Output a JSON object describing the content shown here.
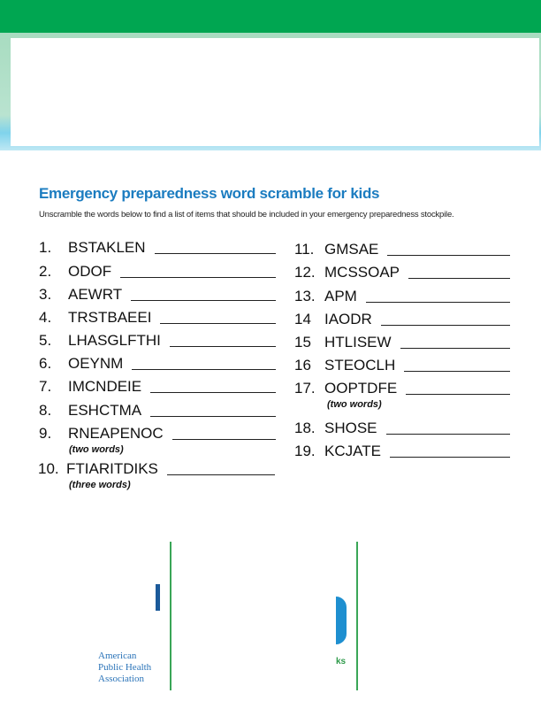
{
  "header": {
    "title": "Emergency preparedness word scramble for kids",
    "instructions": "Unscramble the words below to find a list of items that should be included in your emergency preparedness stockpile."
  },
  "left_column": [
    {
      "number": "1.",
      "word": "BSTAKLEN"
    },
    {
      "number": "2.",
      "word": "ODOF"
    },
    {
      "number": "3.",
      "word": "AEWRT"
    },
    {
      "number": "4.",
      "word": "TRSTBAEEI"
    },
    {
      "number": "5.",
      "word": "LHASGLFTHI"
    },
    {
      "number": "6.",
      "word": "OEYNM"
    },
    {
      "number": "7.",
      "word": "IMCNDEIE"
    },
    {
      "number": "8.",
      "word": "ESHCTMA"
    },
    {
      "number": "9.",
      "word": "RNEAPENOC",
      "note": "(two words)"
    },
    {
      "number": "10.",
      "word": "FTIARITDIKS",
      "note": "(three words)"
    }
  ],
  "right_column": [
    {
      "number": "11.",
      "word": "GMSAE"
    },
    {
      "number": "12.",
      "word": "MCSSOAP"
    },
    {
      "number": "13.",
      "word": "APM"
    },
    {
      "number": "14",
      "word": "IAODR"
    },
    {
      "number": "15",
      "word": "HTLISEW"
    },
    {
      "number": "16",
      "word": "STEOCLH"
    },
    {
      "number": "17.",
      "word": "OOPTDFE",
      "note": "(two words)"
    },
    {
      "number": "18.",
      "word": "SHOSE"
    },
    {
      "number": "19.",
      "word": "KCJATE"
    }
  ],
  "footer": {
    "organization": [
      "American",
      "Public Health",
      "Association"
    ],
    "fragment": "ks"
  }
}
